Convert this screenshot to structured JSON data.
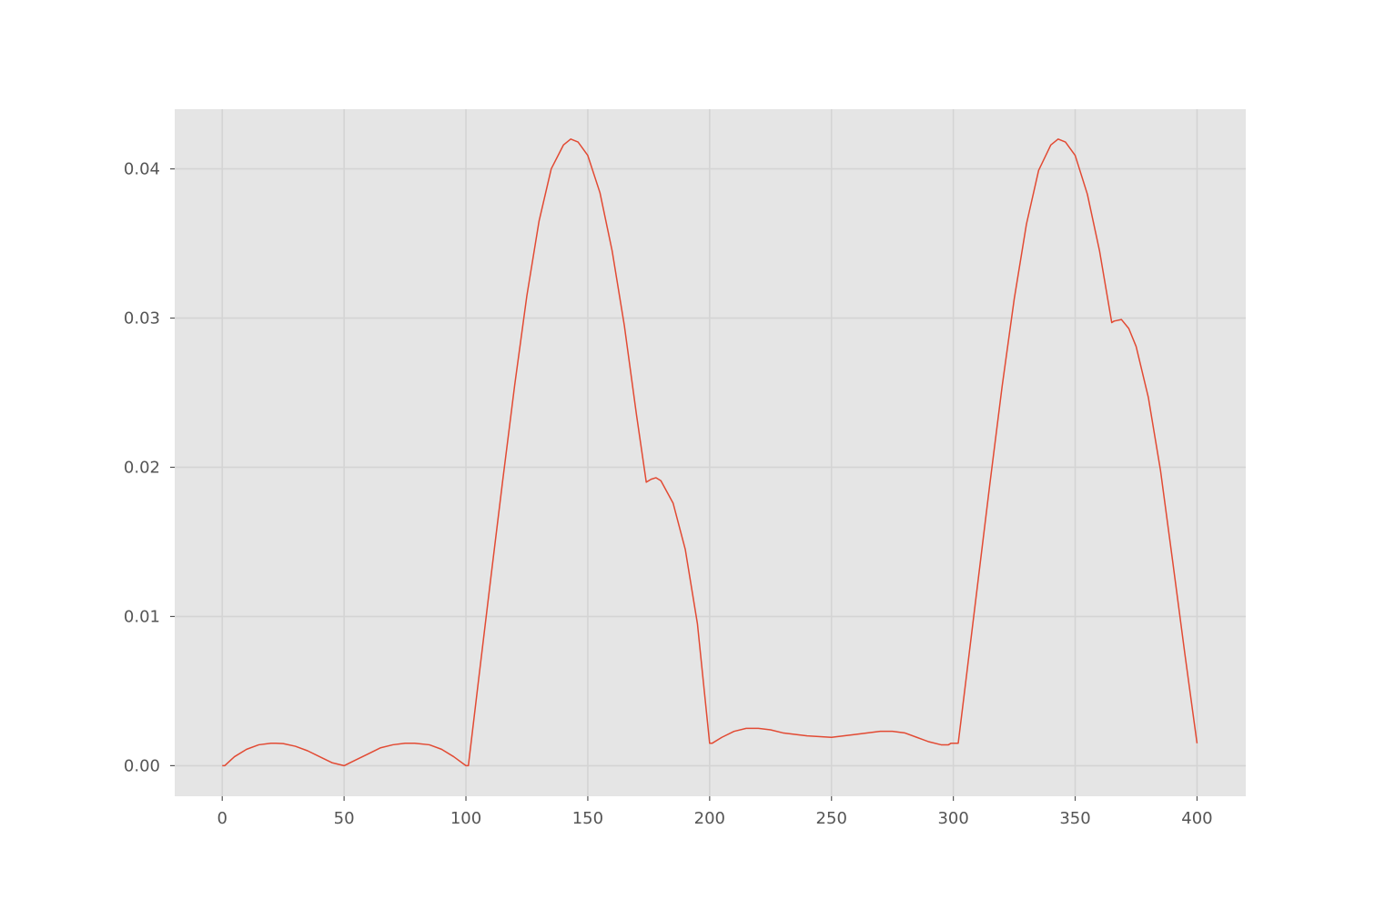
{
  "chart_data": {
    "type": "line",
    "title": "",
    "xlabel": "",
    "ylabel": "",
    "xlim": [
      -19.5,
      420
    ],
    "ylim": [
      -0.00205,
      0.044
    ],
    "x_ticks": [
      0,
      50,
      100,
      150,
      200,
      250,
      300,
      350,
      400
    ],
    "x_tick_labels": [
      "0",
      "50",
      "100",
      "150",
      "200",
      "250",
      "300",
      "350",
      "400"
    ],
    "y_ticks": [
      0.0,
      0.01,
      0.02,
      0.03,
      0.04
    ],
    "y_tick_labels": [
      "0.00",
      "0.01",
      "0.02",
      "0.03",
      "0.04"
    ],
    "grid": true,
    "colors": {
      "plot_background": "#e5e5e5",
      "grid": "#d4d4d4",
      "line": "#e24a33",
      "tick_label": "#555555"
    },
    "series": [
      {
        "color": "#e24a33",
        "x": [
          0,
          1,
          5,
          10,
          15,
          20,
          22,
          25,
          30,
          35,
          40,
          45,
          50,
          55,
          60,
          65,
          70,
          75,
          79,
          85,
          90,
          95,
          100,
          101,
          105,
          110,
          115,
          120,
          125,
          130,
          135,
          140,
          143,
          146,
          150,
          155,
          160,
          165,
          170,
          174,
          176,
          178,
          180,
          185,
          190,
          195,
          200,
          201,
          205,
          210,
          215,
          220,
          225,
          230,
          240,
          250,
          260,
          270,
          275,
          280,
          285,
          290,
          295,
          298,
          299,
          302,
          305,
          310,
          315,
          320,
          325,
          330,
          335,
          340,
          343,
          346,
          350,
          355,
          360,
          365,
          366,
          369,
          372,
          375,
          380,
          385,
          390,
          395,
          400
        ],
        "y": [
          0.0,
          0.0,
          0.0006,
          0.0011,
          0.0014,
          0.0015,
          0.0015,
          0.00148,
          0.0013,
          0.001,
          0.0006,
          0.0002,
          0.0,
          0.0004,
          0.0008,
          0.0012,
          0.0014,
          0.0015,
          0.0015,
          0.0014,
          0.0011,
          0.0006,
          0.0,
          0.0,
          0.0055,
          0.0123,
          0.019,
          0.0255,
          0.0315,
          0.0365,
          0.04,
          0.0416,
          0.042,
          0.0418,
          0.0409,
          0.0384,
          0.0345,
          0.0295,
          0.0235,
          0.019,
          0.0192,
          0.0193,
          0.0191,
          0.0176,
          0.0145,
          0.0095,
          0.0015,
          0.0015,
          0.0019,
          0.0023,
          0.0025,
          0.0025,
          0.0024,
          0.0022,
          0.002,
          0.0019,
          0.0021,
          0.0023,
          0.0023,
          0.0022,
          0.0019,
          0.0016,
          0.0014,
          0.0014,
          0.0015,
          0.0015,
          0.0055,
          0.0122,
          0.0189,
          0.0254,
          0.0313,
          0.0363,
          0.0399,
          0.0416,
          0.042,
          0.0418,
          0.0409,
          0.0383,
          0.0345,
          0.0297,
          0.0298,
          0.0299,
          0.0293,
          0.0281,
          0.0247,
          0.0198,
          0.0137,
          0.0075,
          0.0015
        ]
      }
    ]
  }
}
